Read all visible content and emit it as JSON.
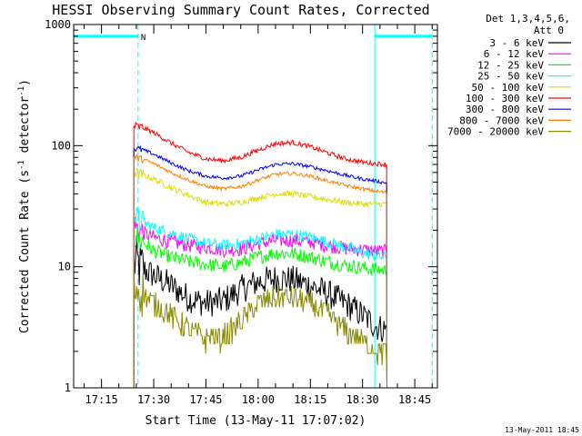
{
  "chart_data": {
    "type": "line",
    "title": "HESSI Observing Summary Count Rates, Corrected",
    "xlabel": "Start Time (13-May-11 17:07:02)",
    "ylabel": "Corrected Count Rate (s",
    "ylabel_sup1": "-1",
    "ylabel_mid": " detector",
    "ylabel_sup2": "-1",
    "ylabel_end": ")",
    "x_ticks": [
      "17:15",
      "17:30",
      "17:45",
      "18:00",
      "18:15",
      "18:30",
      "18:45"
    ],
    "x_tick_minutes": [
      15,
      30,
      45,
      60,
      75,
      90,
      105
    ],
    "y_scale": "log",
    "ylim": [
      1,
      1000
    ],
    "y_ticks": [
      "1",
      "10",
      "100",
      "1000"
    ],
    "y_tick_values": [
      1,
      10,
      100,
      1000
    ],
    "detector_label_1": "Det 1,3,4,5,6,",
    "detector_label_2": "Att 0",
    "night_marker_label": "N",
    "timestamp": "13-May-2011 18:45",
    "x_unit_note": "x values are minutes after 17:00 UT",
    "data_interval": [
      24.3,
      97.0
    ],
    "attenuator_markers": [
      {
        "t_start": 7.0,
        "t_end": 25.5,
        "level": 800
      },
      {
        "t_start": 93.5,
        "t_end": 110.0,
        "level": 800
      }
    ],
    "vertical_lines_solid": [
      7.0,
      93.5
    ],
    "vertical_lines_dashed": [
      25.5,
      110.0
    ],
    "series": [
      {
        "name": "3 - 6 keV",
        "color": "#000000",
        "noise": 0.12,
        "x": [
          24.3,
          27,
          30,
          35,
          40,
          45,
          50,
          55,
          60,
          65,
          70,
          75,
          80,
          85,
          90,
          94,
          96.9
        ],
        "y": [
          11,
          9.5,
          8.5,
          7,
          5.5,
          5,
          5.2,
          6.5,
          7.5,
          8,
          7.8,
          7,
          6,
          5,
          4,
          3.2,
          3
        ]
      },
      {
        "name": "6 - 12 keV",
        "color": "#ff00ff",
        "noise": 0.06,
        "x": [
          24.3,
          27,
          30,
          35,
          40,
          45,
          50,
          55,
          60,
          65,
          70,
          75,
          80,
          85,
          90,
          94,
          96.9
        ],
        "y": [
          22,
          19,
          17.5,
          16,
          15,
          14.5,
          13.8,
          14,
          15.5,
          16.5,
          16.5,
          16,
          15,
          14.2,
          13.8,
          13.5,
          13.3
        ]
      },
      {
        "name": "12 - 25 keV",
        "color": "#00ff00",
        "noise": 0.06,
        "x": [
          24.3,
          27,
          30,
          35,
          40,
          45,
          50,
          55,
          60,
          65,
          70,
          75,
          80,
          85,
          90,
          94,
          96.9
        ],
        "y": [
          18,
          16,
          13.5,
          12,
          11,
          10.5,
          10,
          10.8,
          12,
          13,
          12.8,
          12,
          11,
          10.3,
          9.8,
          9.5,
          9.3
        ]
      },
      {
        "name": "25 - 50 keV",
        "color": "#00ffff",
        "noise": 0.05,
        "x": [
          24.3,
          27,
          30,
          35,
          40,
          45,
          50,
          55,
          60,
          65,
          70,
          75,
          80,
          85,
          90,
          94,
          96.9
        ],
        "y": [
          26,
          23.5,
          21,
          19,
          17,
          15.5,
          15,
          15.5,
          17,
          18.5,
          18.5,
          17.5,
          16,
          14.5,
          13,
          12.3,
          12
        ]
      },
      {
        "name": "50 - 100 keV",
        "color": "#dddd00",
        "noise": 0.025,
        "x": [
          24.3,
          27,
          30,
          35,
          40,
          45,
          50,
          55,
          60,
          65,
          70,
          75,
          80,
          85,
          90,
          94,
          96.9
        ],
        "y": [
          60,
          57,
          53,
          45,
          39,
          34,
          33,
          34,
          37,
          40,
          40,
          38,
          36,
          34,
          33,
          33,
          33
        ]
      },
      {
        "name": "100 - 300 keV",
        "color": "#ff0000",
        "noise": 0.02,
        "x": [
          24.3,
          27,
          30,
          35,
          40,
          45,
          50,
          55,
          60,
          65,
          70,
          75,
          80,
          85,
          90,
          94,
          96.9
        ],
        "y": [
          145,
          140,
          128,
          105,
          88,
          78,
          75,
          80,
          92,
          104,
          106,
          98,
          87,
          78,
          73,
          71,
          70
        ]
      },
      {
        "name": "300 - 800 keV",
        "color": "#0000ff",
        "noise": 0.015,
        "x": [
          24.3,
          27,
          30,
          35,
          40,
          45,
          50,
          55,
          60,
          65,
          70,
          75,
          80,
          85,
          90,
          94,
          96.9
        ],
        "y": [
          95,
          92,
          85,
          72,
          62,
          56,
          54,
          56,
          63,
          70,
          71,
          67,
          62,
          57,
          53,
          51,
          49
        ]
      },
      {
        "name": "800 - 7000 keV",
        "color": "#ff7f00",
        "noise": 0.015,
        "x": [
          24.3,
          27,
          30,
          35,
          40,
          45,
          50,
          55,
          60,
          65,
          70,
          75,
          80,
          85,
          90,
          94,
          96.9
        ],
        "y": [
          80,
          77,
          71,
          60,
          52,
          46,
          44,
          46,
          52,
          58,
          59,
          56,
          51,
          47,
          44,
          42,
          41
        ]
      },
      {
        "name": "7000 - 20000 keV",
        "color": "#8b8b00",
        "noise": 0.1,
        "quantized": true,
        "x": [
          24.3,
          27,
          30,
          35,
          40,
          45,
          50,
          55,
          60,
          65,
          70,
          75,
          80,
          85,
          90,
          94,
          96.9
        ],
        "y": [
          7,
          6,
          5,
          4,
          3,
          2.6,
          2.6,
          3.5,
          5,
          5.5,
          5.5,
          5,
          4,
          3,
          2.5,
          2,
          2
        ]
      }
    ]
  }
}
